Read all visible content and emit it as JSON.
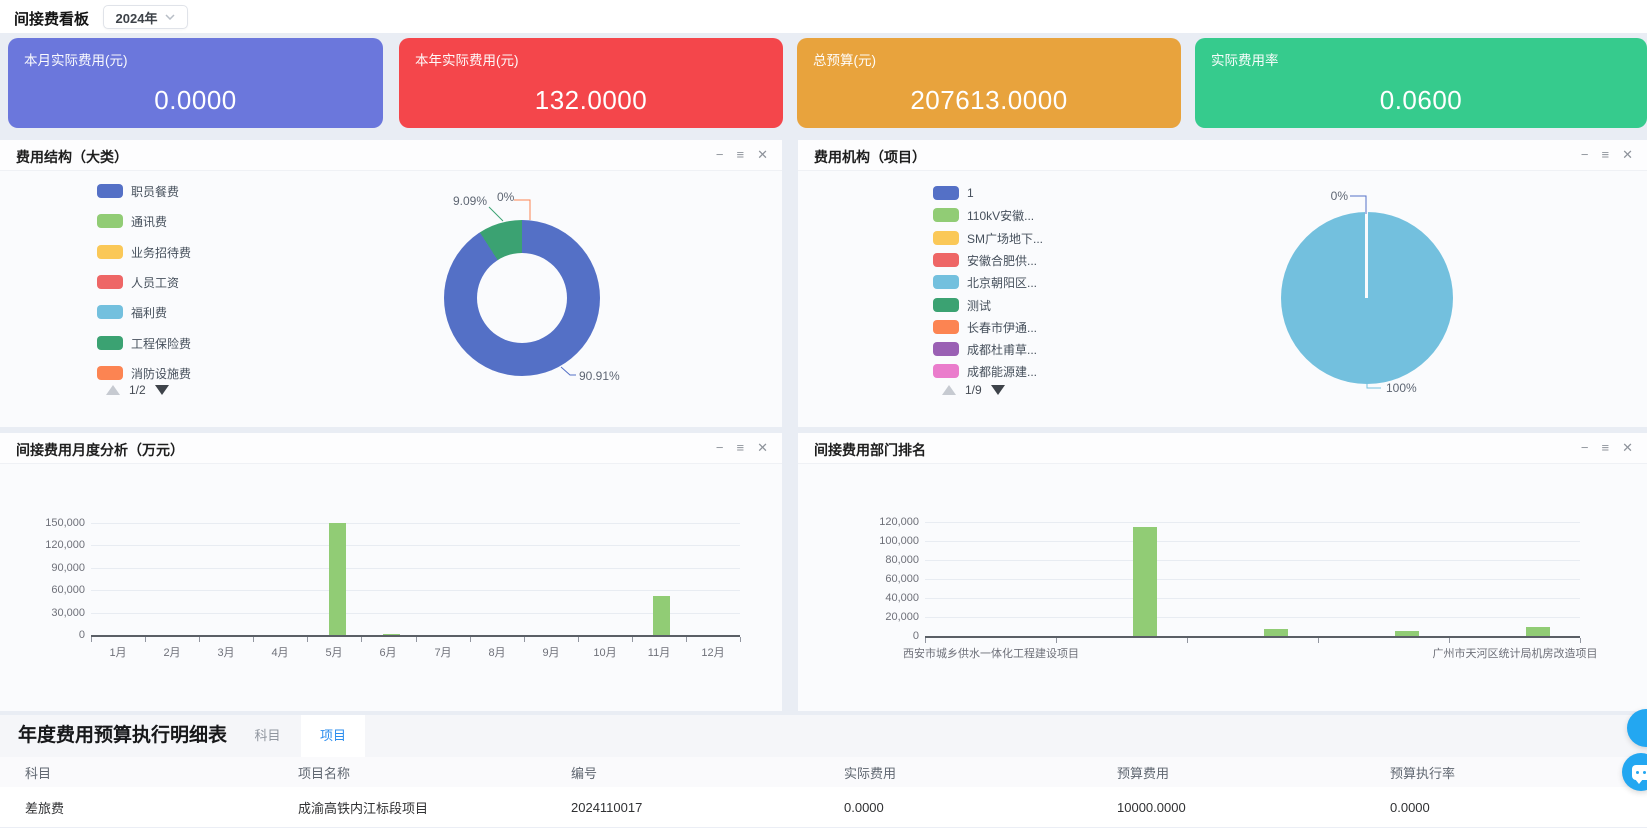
{
  "app": {
    "title": "间接费看板",
    "year": "2024年"
  },
  "panel_controls": {
    "minimize": "−",
    "menu": "≡",
    "close": "✕"
  },
  "kpi_cards": [
    {
      "label": "本月实际费用(元)",
      "value": "0.0000",
      "color": "#6B77DC"
    },
    {
      "label": "本年实际费用(元)",
      "value": "132.0000",
      "color": "#F4464B"
    },
    {
      "label": "总预算(元)",
      "value": "207613.0000",
      "color": "#E8A33D"
    },
    {
      "label": "实际费用率",
      "value": "0.0600",
      "color": "#36CB8D"
    }
  ],
  "palette": [
    "#5470C6",
    "#91CC75",
    "#FAC858",
    "#EE6666",
    "#73C0DE",
    "#3BA272",
    "#FC8452",
    "#9A60B4",
    "#EA7CCC"
  ],
  "panels": [
    {
      "title": "费用结构（大类）",
      "pagination": "1/2"
    },
    {
      "title": "费用机构（项目）",
      "pagination": "1/9"
    },
    {
      "title": "间接费用月度分析（万元）"
    },
    {
      "title": "间接费用部门排名"
    }
  ],
  "chart_data": [
    {
      "type": "pie",
      "title": "费用结构（大类）",
      "donut": true,
      "legend_position": "left",
      "legend_pages": "1/2",
      "legend": [
        "职员餐费",
        "通讯费",
        "业务招待费",
        "人员工资",
        "福利费",
        "工程保险费",
        "消防设施费"
      ],
      "slices": [
        {
          "name": "职员餐费",
          "label": "90.91%",
          "value_pct": 90.91,
          "color": "#5470C6"
        },
        {
          "name": "工程保险费",
          "label": "9.09%",
          "value_pct": 9.09,
          "color": "#3BA272"
        },
        {
          "name": "消防设施费",
          "label": "0%",
          "value_pct": 0,
          "color": "#FC8452"
        }
      ]
    },
    {
      "type": "pie",
      "title": "费用机构（项目）",
      "donut": false,
      "legend_position": "left",
      "legend_pages": "1/9",
      "legend": [
        "1",
        "110kV安徽...",
        "SM广场地下...",
        "安徽合肥供...",
        "北京朝阳区...",
        "测试",
        "长春市伊通...",
        "成都杜甫草...",
        "成都能源建..."
      ],
      "slices": [
        {
          "label": "100%",
          "value_pct": 100,
          "color": "#73C0DE"
        },
        {
          "label": "0%",
          "value_pct": 0,
          "color": "#5470C6"
        }
      ]
    },
    {
      "type": "bar",
      "title": "间接费用月度分析（万元）",
      "categories": [
        "1月",
        "2月",
        "3月",
        "4月",
        "5月",
        "6月",
        "7月",
        "8月",
        "9月",
        "10月",
        "11月",
        "12月"
      ],
      "values": [
        0,
        0,
        0,
        0,
        150000,
        1500,
        0,
        0,
        0,
        0,
        52000,
        0
      ],
      "ylim": [
        0,
        150000
      ],
      "ytick_step": 30000,
      "bar_color": "#91CC75",
      "grid": true,
      "legend_position": "none"
    },
    {
      "type": "bar",
      "title": "间接费用部门排名",
      "categories": [
        "西安市城乡供水一体化工程建设项目",
        "",
        "",
        "",
        "广州市天河区统计局机房改造项目"
      ],
      "values": [
        0,
        115000,
        7000,
        5500,
        9500
      ],
      "ylim": [
        0,
        120000
      ],
      "ytick_step": 20000,
      "bar_color": "#91CC75",
      "grid": true,
      "legend_position": "none"
    }
  ],
  "table": {
    "title": "年度费用预算执行明细表",
    "tabs": [
      {
        "label": "科目",
        "active": false
      },
      {
        "label": "项目",
        "active": true
      }
    ],
    "columns": [
      "科目",
      "项目名称",
      "编号",
      "实际费用",
      "预算费用",
      "预算执行率"
    ],
    "rows": [
      [
        "差旅费",
        "成渝高铁内江标段项目",
        "2024110017",
        "0.0000",
        "10000.0000",
        "0.0000"
      ]
    ]
  },
  "float_buttons": [
    {
      "name": "feedback"
    },
    {
      "name": "customer-service-chat"
    }
  ],
  "accent_blue": "#23A7F1"
}
